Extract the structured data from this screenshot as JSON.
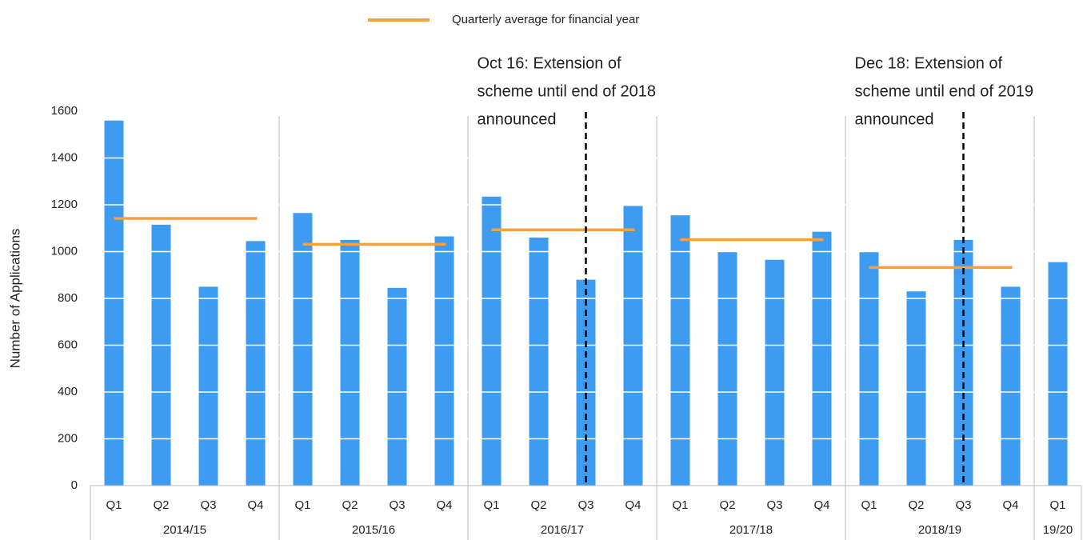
{
  "chart_data": {
    "type": "bar",
    "ylabel": "Number of Applications",
    "bar_color": "#3d9cf2",
    "legend": {
      "name": "Quarterly average for financial year",
      "color": "#f7a040"
    },
    "ylim": [
      0,
      1600
    ],
    "yticks": [
      0,
      200,
      400,
      600,
      800,
      1000,
      1200,
      1400,
      1600
    ],
    "grid": true,
    "groups": [
      {
        "name": "2014/15",
        "categories": [
          "Q1",
          "Q2",
          "Q3",
          "Q4"
        ],
        "values": [
          1560,
          1115,
          850,
          1045
        ],
        "average": 1142
      },
      {
        "name": "2015/16",
        "categories": [
          "Q1",
          "Q2",
          "Q3",
          "Q4"
        ],
        "values": [
          1165,
          1050,
          845,
          1065
        ],
        "average": 1031
      },
      {
        "name": "2016/17",
        "categories": [
          "Q1",
          "Q2",
          "Q3",
          "Q4"
        ],
        "values": [
          1235,
          1060,
          880,
          1195
        ],
        "average": 1093
      },
      {
        "name": "2017/18",
        "categories": [
          "Q1",
          "Q2",
          "Q3",
          "Q4"
        ],
        "values": [
          1155,
          1000,
          965,
          1085
        ],
        "average": 1051
      },
      {
        "name": "2018/19",
        "categories": [
          "Q1",
          "Q2",
          "Q3",
          "Q4"
        ],
        "values": [
          1000,
          830,
          1050,
          850
        ],
        "average": 932
      },
      {
        "name": "19/20",
        "categories": [
          "Q1"
        ],
        "values": [
          955
        ],
        "average": null
      }
    ],
    "annotations": [
      {
        "lines": [
          "Oct 16: Extension of",
          "scheme until end of 2018",
          "announced"
        ],
        "group": "2016/17",
        "category": "Q3"
      },
      {
        "lines": [
          "Dec 18: Extension of",
          "scheme until end of 2019",
          "announced"
        ],
        "group": "2018/19",
        "category": "Q3"
      }
    ]
  }
}
